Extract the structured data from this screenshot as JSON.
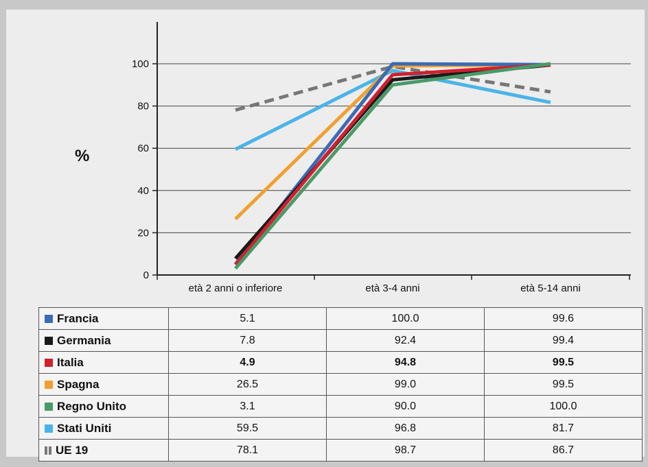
{
  "chart_data": {
    "type": "line",
    "ylabel": "%",
    "ylim": [
      0,
      100
    ],
    "yticks": [
      0,
      20,
      40,
      60,
      80,
      100
    ],
    "categories": [
      "età 2 anni o inferiore",
      "età 3-4 anni",
      "età 5-14 anni"
    ],
    "grid": true,
    "legend": "table below chart",
    "series": [
      {
        "name": "Francia",
        "color": "#3a6bb5",
        "values": [
          5.1,
          100.0,
          99.6
        ],
        "labels": [
          "5.1",
          "100.0",
          "99.6"
        ]
      },
      {
        "name": "Germania",
        "color": "#1a1a1a",
        "values": [
          7.8,
          92.4,
          99.4
        ],
        "labels": [
          "7.8",
          "92.4",
          "99.4"
        ]
      },
      {
        "name": "Italia",
        "color": "#d0202e",
        "values": [
          4.9,
          94.8,
          99.5
        ],
        "labels": [
          "4.9",
          "94.8",
          "99.5"
        ],
        "highlight": true
      },
      {
        "name": "Spagna",
        "color": "#f0a030",
        "values": [
          26.5,
          99.0,
          99.5
        ],
        "labels": [
          "26.5",
          "99.0",
          "99.5"
        ]
      },
      {
        "name": "Regno Unito",
        "color": "#4a9a68",
        "values": [
          3.1,
          90.0,
          100.0
        ],
        "labels": [
          "3.1",
          "90.0",
          "100.0"
        ]
      },
      {
        "name": "Stati Uniti",
        "color": "#4ab4e8",
        "values": [
          59.5,
          96.8,
          81.7
        ],
        "labels": [
          "59.5",
          "96.8",
          "81.7"
        ]
      },
      {
        "name": "UE 19",
        "color": "#777777",
        "values": [
          78.1,
          98.7,
          86.7
        ],
        "labels": [
          "78.1",
          "98.7",
          "86.7"
        ],
        "dashed": true
      }
    ]
  }
}
